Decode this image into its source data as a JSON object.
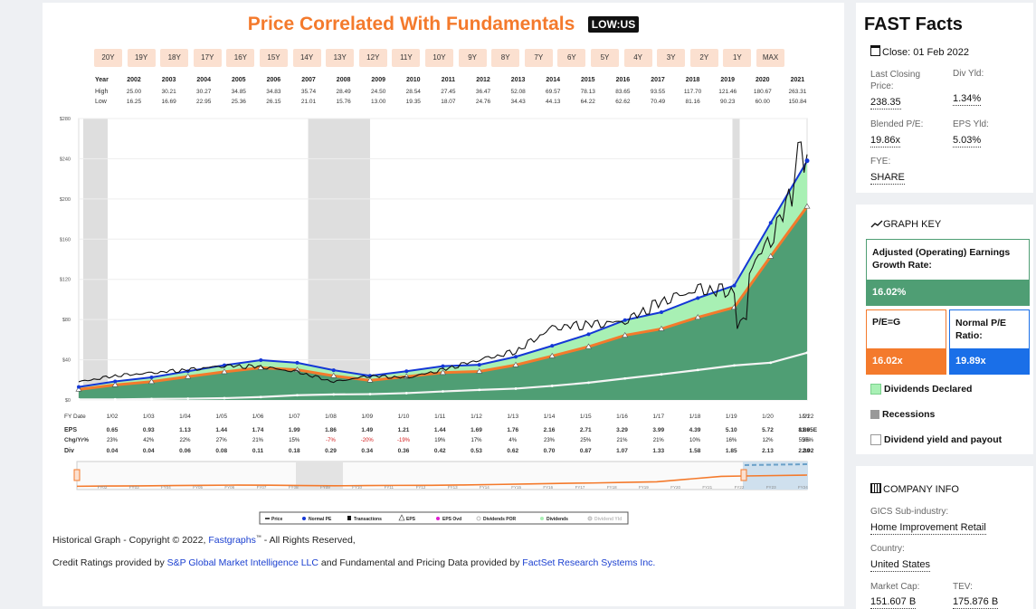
{
  "header": {
    "title": "Price Correlated With Fundamentals",
    "ticker": "LOW:US"
  },
  "range_buttons": [
    "20Y",
    "19Y",
    "18Y",
    "17Y",
    "16Y",
    "15Y",
    "14Y",
    "13Y",
    "12Y",
    "11Y",
    "10Y",
    "9Y",
    "8Y",
    "7Y",
    "6Y",
    "5Y",
    "4Y",
    "3Y",
    "2Y",
    "1Y",
    "MAX"
  ],
  "year_table": {
    "year_label": "Year",
    "high_label": "High",
    "low_label": "Low",
    "years": [
      "2002",
      "2003",
      "2004",
      "2005",
      "2006",
      "2007",
      "2008",
      "2009",
      "2010",
      "2011",
      "2012",
      "2013",
      "2014",
      "2015",
      "2016",
      "2017",
      "2018",
      "2019",
      "2020",
      "2021"
    ],
    "high": [
      "25.00",
      "30.21",
      "30.27",
      "34.85",
      "34.83",
      "35.74",
      "28.49",
      "24.50",
      "28.54",
      "27.45",
      "36.47",
      "52.08",
      "69.57",
      "78.13",
      "83.65",
      "93.55",
      "117.70",
      "121.46",
      "180.67",
      "263.31"
    ],
    "low": [
      "16.25",
      "16.69",
      "22.95",
      "25.36",
      "26.15",
      "21.01",
      "15.76",
      "13.00",
      "19.35",
      "18.07",
      "24.76",
      "34.43",
      "44.13",
      "64.22",
      "62.62",
      "70.49",
      "81.16",
      "90.23",
      "60.00",
      "150.84"
    ]
  },
  "fy_table": {
    "fy_label": "FY Date",
    "eps_label": "EPS",
    "chg_label": "Chg/Yr%",
    "div_label": "Div",
    "dates": [
      "1/02",
      "1/03",
      "1/04",
      "1/05",
      "1/06",
      "1/07",
      "1/08",
      "1/09",
      "1/10",
      "1/11",
      "1/12",
      "1/13",
      "1/14",
      "1/15",
      "1/16",
      "1/17",
      "1/18",
      "1/19",
      "1/20",
      "1/21",
      "1/22"
    ],
    "eps": [
      "0.65",
      "0.93",
      "1.13",
      "1.44",
      "1.74",
      "1.99",
      "1.86",
      "1.49",
      "1.21",
      "1.44",
      "1.69",
      "1.76",
      "2.16",
      "2.71",
      "3.29",
      "3.99",
      "4.39",
      "5.10",
      "5.72",
      "8.86",
      "11.95E"
    ],
    "chg": [
      "23%",
      "42%",
      "22%",
      "27%",
      "21%",
      "15%",
      "-7%",
      "-20%",
      "-19%",
      "19%",
      "17%",
      "4%",
      "23%",
      "25%",
      "21%",
      "21%",
      "10%",
      "16%",
      "12%",
      "55%",
      "35%"
    ],
    "div": [
      "0.04",
      "0.04",
      "0.06",
      "0.08",
      "0.11",
      "0.18",
      "0.29",
      "0.34",
      "0.36",
      "0.42",
      "0.53",
      "0.62",
      "0.70",
      "0.87",
      "1.07",
      "1.33",
      "1.58",
      "1.85",
      "2.13",
      "2.30",
      "2.92"
    ]
  },
  "chart_data": {
    "type": "area",
    "y_tick_labels": [
      "$0",
      "$40",
      "$80",
      "$120",
      "$160",
      "$200",
      "$240",
      "$280"
    ],
    "ylim": [
      0,
      280
    ],
    "x": [
      "1/02",
      "1/03",
      "1/04",
      "1/05",
      "1/06",
      "1/07",
      "1/08",
      "1/09",
      "1/10",
      "1/11",
      "1/12",
      "1/13",
      "1/14",
      "1/15",
      "1/16",
      "1/17",
      "1/18",
      "1/19",
      "1/20",
      "1/21",
      "1/22"
    ],
    "series": [
      {
        "name": "Price",
        "values": [
          18,
          24,
          27,
          30,
          34,
          33,
          28,
          18,
          24,
          22,
          30,
          40,
          48,
          72,
          75,
          78,
          98,
          110,
          108,
          160,
          238
        ]
      },
      {
        "name": "Normal PE",
        "values": [
          12.9,
          18.5,
          22.5,
          28.6,
          34.6,
          39.6,
          37.0,
          29.6,
          24.1,
          28.6,
          33.6,
          35.0,
          43.0,
          53.9,
          65.4,
          79.4,
          87.3,
          101.4,
          113.8,
          176.2,
          237.7
        ]
      },
      {
        "name": "Adjusted (Operating) Earnings Growth Rate",
        "values": [
          10.5,
          15.0,
          18.2,
          23.2,
          28.0,
          32.1,
          30.0,
          24.0,
          19.5,
          23.2,
          27.2,
          28.4,
          34.8,
          43.7,
          53.0,
          64.3,
          70.7,
          82.2,
          92.1,
          142.8,
          192.5
        ]
      },
      {
        "name": "Dividends",
        "values": [
          0.6,
          0.6,
          1.0,
          1.3,
          1.8,
          2.9,
          4.7,
          5.5,
          5.8,
          6.8,
          8.5,
          10.0,
          11.3,
          14.0,
          17.2,
          21.4,
          25.5,
          29.8,
          34.3,
          37.1,
          47.0
        ]
      }
    ],
    "recessions": [
      [
        "1/01",
        "1/02"
      ],
      [
        "1/08",
        "1/10"
      ],
      [
        "1/20",
        "1/20.25"
      ]
    ],
    "legend": [
      "Price",
      "Normal PE",
      "Transactions",
      "EPS",
      "EPS Ovd",
      "Dividends POR",
      "Dividends",
      "Dividend Yld"
    ],
    "overview_labels": [
      "FY02",
      "FY03",
      "FY04",
      "FY05",
      "FY06",
      "FY07",
      "FY08",
      "FY09",
      "FY10",
      "FY11",
      "FY12",
      "FY13",
      "FY14",
      "FY15",
      "FY16",
      "FY17",
      "FY18",
      "FY19",
      "FY20",
      "FY21",
      "FY22",
      "FY23",
      "FY24"
    ]
  },
  "footer": {
    "copyright_pre": "Historical Graph - Copyright © 2022, ",
    "copyright_link": "Fastgraphs",
    "copyright_tm": "™",
    "copyright_post": " - All Rights Reserved,",
    "credit_pre": "Credit Ratings provided by ",
    "credit_link1": "S&P Global Market Intelligence LLC",
    "credit_mid": " and Fundamental and Pricing Data provided by ",
    "credit_link2": "FactSet Research Systems Inc."
  },
  "fast_facts": {
    "title": "FAST Facts",
    "close": "Close: 01 Feb 2022",
    "last_closing_label": "Last Closing Price:",
    "last_closing_value": "238.35",
    "div_yld_label": "Div Yld:",
    "div_yld_value": "1.34%",
    "blended_pe_label": "Blended P/E:",
    "blended_pe_value": "19.86x",
    "eps_yld_label": "EPS Yld:",
    "eps_yld_value": "5.03%",
    "fye_label": "FYE:",
    "fye_value": "SHARE"
  },
  "graph_key": {
    "title": "GRAPH KEY",
    "growth_label": "Adjusted (Operating) Earnings Growth Rate:",
    "growth_value": "16.02%",
    "peg_label": "P/E=G",
    "peg_value": "16.02x",
    "normal_pe_label": "Normal P/E Ratio:",
    "normal_pe_value": "19.89x",
    "dividends_declared": "Dividends Declared",
    "recessions": "Recessions",
    "div_yield_payout": "Dividend yield and payout"
  },
  "company_info": {
    "title": "COMPANY INFO",
    "gics_label": "GICS Sub-industry:",
    "gics_value": "Home Improvement Retail",
    "country_label": "Country:",
    "country_value": "United States",
    "mcap_label": "Market Cap:",
    "mcap_value": "151.607 B",
    "tev_label": "TEV:",
    "tev_value": "175.876 B"
  },
  "colors": {
    "orange": "#f47a2c",
    "blue": "#1437d6",
    "green_dark": "#4f9e74",
    "green_light": "#a8f0b4",
    "recession": "#dedede"
  }
}
